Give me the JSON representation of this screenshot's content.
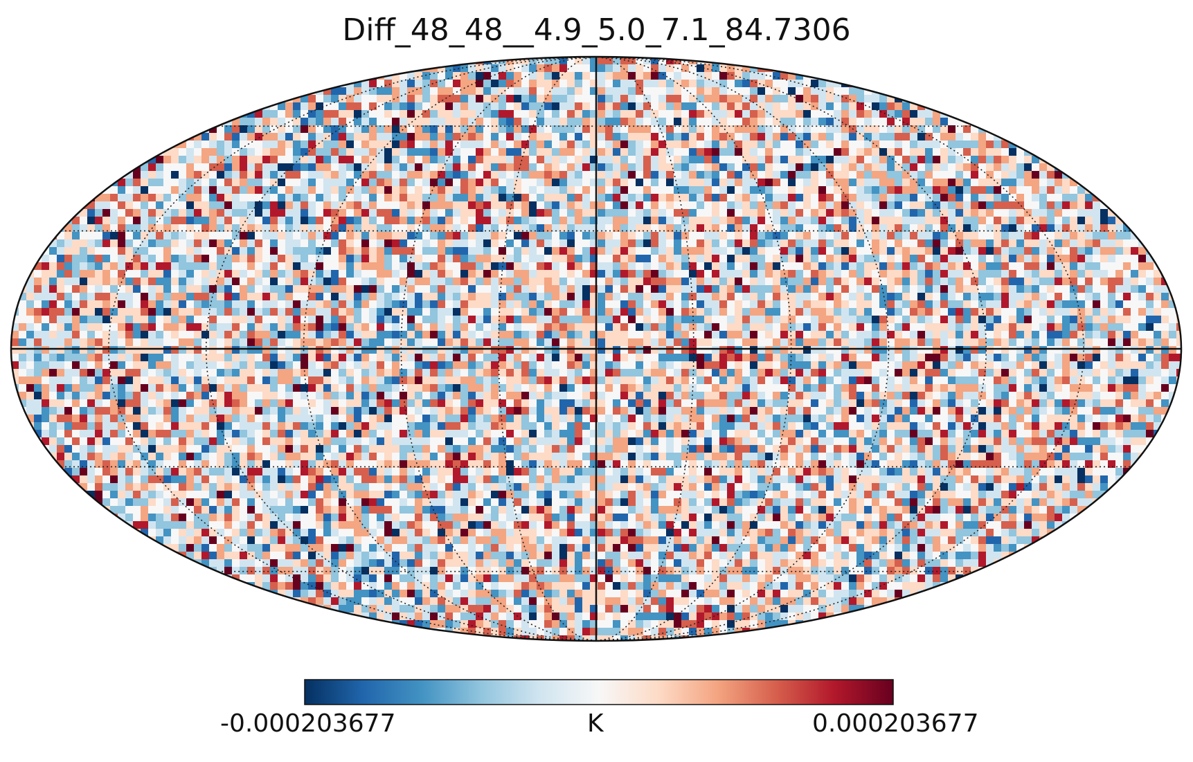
{
  "title": "Diff_48_48__4.9_5.0_7.1_84.7306",
  "projection": "mollweide",
  "colormap": "RdBu_r",
  "colorbar": {
    "min_label": "-0.000203677",
    "max_label": "0.000203677",
    "unit": "K",
    "stops": [
      "#053061",
      "#2166ac",
      "#4393c3",
      "#92c5de",
      "#d1e5f0",
      "#f7f7f7",
      "#fddbc7",
      "#f4a582",
      "#d6604d",
      "#b2182b",
      "#67001f"
    ]
  },
  "graticule": {
    "meridians_deg": [
      -150,
      -120,
      -90,
      -60,
      -30,
      30,
      60,
      90,
      120,
      150
    ],
    "parallels_deg": [
      -60,
      -30,
      30,
      60
    ],
    "style": "dotted",
    "central_meridian_solid": true,
    "equator_solid": true
  }
}
